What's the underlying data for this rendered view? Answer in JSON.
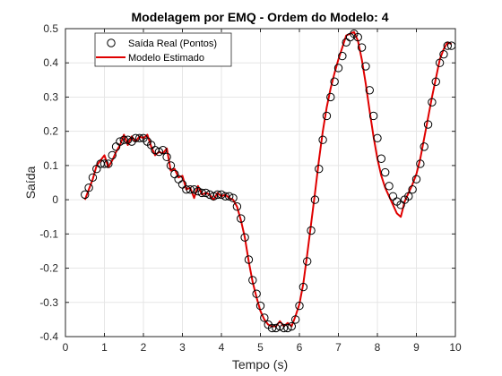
{
  "chart_data": {
    "type": "line",
    "title": "Modelagem por EMQ - Ordem do Modelo: 4",
    "xlabel": "Tempo (s)",
    "ylabel": "Saída",
    "xlim": [
      0,
      10
    ],
    "ylim": [
      -0.4,
      0.5
    ],
    "xticks": [
      "0",
      "1",
      "2",
      "3",
      "4",
      "5",
      "6",
      "7",
      "8",
      "9",
      "10"
    ],
    "yticks": [
      "-0.4",
      "-0.3",
      "-0.2",
      "-0.1",
      "0",
      "0.1",
      "0.2",
      "0.3",
      "0.4",
      "0.5"
    ],
    "grid": true,
    "legend_position": "top-left",
    "series": [
      {
        "name": "Saída Real (Pontos)",
        "style": "markers",
        "marker": "open-circle",
        "color": "#000000",
        "x": [
          0.5,
          0.6,
          0.7,
          0.8,
          0.9,
          1.0,
          1.1,
          1.2,
          1.3,
          1.4,
          1.5,
          1.6,
          1.7,
          1.8,
          1.9,
          2.0,
          2.1,
          2.2,
          2.3,
          2.4,
          2.5,
          2.6,
          2.7,
          2.8,
          2.9,
          3.0,
          3.1,
          3.2,
          3.3,
          3.4,
          3.5,
          3.6,
          3.7,
          3.8,
          3.9,
          4.0,
          4.1,
          4.2,
          4.3,
          4.4,
          4.5,
          4.6,
          4.7,
          4.8,
          4.9,
          5.0,
          5.1,
          5.2,
          5.3,
          5.4,
          5.5,
          5.6,
          5.7,
          5.8,
          5.9,
          6.0,
          6.1,
          6.2,
          6.3,
          6.4,
          6.5,
          6.6,
          6.7,
          6.8,
          6.9,
          7.0,
          7.1,
          7.2,
          7.3,
          7.4,
          7.5,
          7.6,
          7.7,
          7.8,
          7.9,
          8.0,
          8.1,
          8.2,
          8.3,
          8.4,
          8.5,
          8.6,
          8.7,
          8.8,
          8.9,
          9.0,
          9.1,
          9.2,
          9.3,
          9.4,
          9.5,
          9.6,
          9.7,
          9.8,
          9.9
        ],
        "y": [
          0.015,
          0.035,
          0.065,
          0.09,
          0.105,
          0.105,
          0.105,
          0.13,
          0.155,
          0.17,
          0.175,
          0.175,
          0.17,
          0.18,
          0.18,
          0.18,
          0.17,
          0.16,
          0.145,
          0.14,
          0.145,
          0.125,
          0.1,
          0.075,
          0.06,
          0.045,
          0.03,
          0.03,
          0.03,
          0.025,
          0.02,
          0.02,
          0.015,
          0.01,
          0.015,
          0.015,
          0.01,
          0.01,
          0.005,
          -0.02,
          -0.055,
          -0.11,
          -0.175,
          -0.235,
          -0.275,
          -0.31,
          -0.345,
          -0.365,
          -0.375,
          -0.375,
          -0.37,
          -0.375,
          -0.375,
          -0.37,
          -0.35,
          -0.31,
          -0.255,
          -0.18,
          -0.09,
          0.0,
          0.09,
          0.175,
          0.245,
          0.3,
          0.345,
          0.385,
          0.42,
          0.46,
          0.475,
          0.485,
          0.475,
          0.445,
          0.39,
          0.32,
          0.245,
          0.18,
          0.12,
          0.08,
          0.04,
          0.01,
          -0.005,
          -0.015,
          0.0,
          0.01,
          0.03,
          0.06,
          0.105,
          0.155,
          0.22,
          0.285,
          0.345,
          0.4,
          0.425,
          0.45,
          0.45
        ]
      },
      {
        "name": "Modelo Estimado",
        "style": "line",
        "color": "#e00000",
        "x": [
          0.5,
          0.6,
          0.7,
          0.8,
          0.9,
          1.0,
          1.1,
          1.2,
          1.3,
          1.4,
          1.5,
          1.6,
          1.7,
          1.8,
          1.9,
          2.0,
          2.1,
          2.2,
          2.3,
          2.4,
          2.5,
          2.6,
          2.7,
          2.8,
          2.9,
          3.0,
          3.1,
          3.2,
          3.3,
          3.4,
          3.5,
          3.6,
          3.7,
          3.8,
          3.9,
          4.0,
          4.1,
          4.2,
          4.3,
          4.4,
          4.5,
          4.6,
          4.7,
          4.8,
          4.9,
          5.0,
          5.1,
          5.2,
          5.3,
          5.4,
          5.5,
          5.6,
          5.7,
          5.8,
          5.9,
          6.0,
          6.1,
          6.2,
          6.3,
          6.4,
          6.5,
          6.6,
          6.7,
          6.8,
          6.9,
          7.0,
          7.1,
          7.2,
          7.3,
          7.4,
          7.5,
          7.6,
          7.7,
          7.8,
          7.9,
          8.0,
          8.1,
          8.2,
          8.3,
          8.4,
          8.5,
          8.6,
          8.7,
          8.8,
          8.9,
          9.0,
          9.1,
          9.2,
          9.3,
          9.4,
          9.5,
          9.6,
          9.7,
          9.8,
          9.9
        ],
        "y": [
          0.0,
          0.03,
          0.06,
          0.1,
          0.115,
          0.13,
          0.095,
          0.115,
          0.14,
          0.16,
          0.19,
          0.16,
          0.185,
          0.17,
          0.185,
          0.18,
          0.19,
          0.155,
          0.13,
          0.14,
          0.135,
          0.15,
          0.085,
          0.09,
          0.065,
          0.07,
          0.03,
          0.035,
          0.005,
          0.04,
          0.015,
          0.02,
          0.015,
          0.0,
          0.02,
          0.01,
          0.015,
          0.005,
          0.0,
          -0.02,
          -0.06,
          -0.11,
          -0.18,
          -0.24,
          -0.285,
          -0.325,
          -0.35,
          -0.365,
          -0.37,
          -0.37,
          -0.355,
          -0.37,
          -0.36,
          -0.37,
          -0.34,
          -0.305,
          -0.245,
          -0.16,
          -0.07,
          0.02,
          0.115,
          0.2,
          0.27,
          0.325,
          0.37,
          0.41,
          0.445,
          0.48,
          0.485,
          0.49,
          0.465,
          0.41,
          0.34,
          0.26,
          0.185,
          0.12,
          0.07,
          0.035,
          0.01,
          -0.015,
          -0.04,
          -0.05,
          -0.005,
          0.02,
          0.045,
          0.075,
          0.12,
          0.18,
          0.24,
          0.3,
          0.355,
          0.41,
          0.44,
          0.46,
          0.455
        ]
      }
    ]
  },
  "colors": {
    "axis": "#262626",
    "grid": "#e6e6e6",
    "marker": "#000000",
    "model_line": "#e00000"
  }
}
